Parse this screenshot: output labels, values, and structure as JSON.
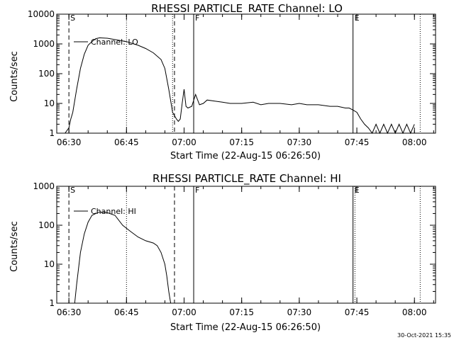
{
  "footer_date": "30-Oct-2021 15:35",
  "chart_data": [
    {
      "type": "line",
      "title": "RHESSI PARTICLE_RATE Channel: LO",
      "xlabel": "Start Time (22-Aug-15 06:26:50)",
      "ylabel": "Counts/sec",
      "yscale": "log",
      "ylim": [
        1,
        10000
      ],
      "xlim": [
        "06:26:50",
        "08:05:30"
      ],
      "x_ticks": [
        "06:30",
        "06:45",
        "07:00",
        "07:15",
        "07:30",
        "07:45",
        "08:00"
      ],
      "y_ticks": [
        "1",
        "10",
        "100",
        "1000",
        "10000"
      ],
      "legend": {
        "label": "Channel: LO",
        "placement": "top-left"
      },
      "event_markers": [
        {
          "label": "S",
          "time": "06:30:00",
          "style": "dashed"
        },
        {
          "label": "",
          "time": "06:57:30",
          "style": "dashed"
        },
        {
          "label": "F",
          "time": "07:02:30",
          "style": "solid"
        },
        {
          "label": "E",
          "time": "07:44:00",
          "style": "solid"
        }
      ],
      "dotted_lines": [
        "06:45:00",
        "06:57:00",
        "08:01:30"
      ],
      "series": [
        {
          "x": [
            "06:28:00",
            "06:29:00",
            "06:30:00",
            "06:30:30",
            "06:31:00",
            "06:32:00",
            "06:33:00",
            "06:34:00",
            "06:35:00",
            "06:36:00",
            "06:37:00",
            "06:38:00",
            "06:40:00",
            "06:42:00",
            "06:45:00",
            "06:48:00",
            "06:50:00",
            "06:52:00",
            "06:54:00",
            "06:55:00",
            "06:56:00",
            "06:57:00",
            "06:58:00",
            "06:58:30",
            "06:59:00",
            "06:59:30",
            "07:00:00",
            "07:00:30",
            "07:01:00",
            "07:02:00",
            "07:03:00",
            "07:04:00",
            "07:05:00",
            "07:06:00",
            "07:08:00",
            "07:10:00",
            "07:12:00",
            "07:15:00",
            "07:18:00",
            "07:20:00",
            "07:22:00",
            "07:25:00",
            "07:28:00",
            "07:30:00",
            "07:32:00",
            "07:35:00",
            "07:38:00",
            "07:40:00",
            "07:42:00",
            "07:43:00",
            "07:44:00",
            "07:45:00",
            "07:46:00",
            "07:47:00",
            "07:48:00",
            "07:49:00",
            "07:50:00",
            "07:51:00",
            "07:52:00",
            "07:53:00",
            "07:54:00",
            "07:55:00",
            "07:56:00",
            "07:57:00",
            "07:58:00",
            "07:59:00",
            "08:00:00"
          ],
          "y": [
            1,
            1,
            1.5,
            3,
            5,
            30,
            150,
            450,
            900,
            1200,
            1500,
            1600,
            1550,
            1400,
            1200,
            900,
            700,
            500,
            300,
            150,
            30,
            5,
            3,
            2.5,
            3,
            10,
            30,
            8,
            7,
            8,
            20,
            9,
            10,
            13,
            12,
            11,
            10,
            10,
            11,
            9,
            10,
            10,
            9,
            10,
            9,
            9,
            8,
            8,
            7,
            7,
            6,
            5,
            3,
            2,
            1.5,
            1,
            2,
            1,
            2,
            1,
            2,
            1,
            2,
            1,
            2,
            1,
            2
          ]
        }
      ]
    },
    {
      "type": "line",
      "title": "RHESSI PARTICLE_RATE Channel: HI",
      "xlabel": "Start Time (22-Aug-15 06:26:50)",
      "ylabel": "Counts/sec",
      "yscale": "log",
      "ylim": [
        1,
        1000
      ],
      "xlim": [
        "06:26:50",
        "08:05:30"
      ],
      "x_ticks": [
        "06:30",
        "06:45",
        "07:00",
        "07:15",
        "07:30",
        "07:45",
        "08:00"
      ],
      "y_ticks": [
        "1",
        "10",
        "100",
        "1000"
      ],
      "legend": {
        "label": "Channel: HI",
        "placement": "top-left"
      },
      "event_markers": [
        {
          "label": "S",
          "time": "06:30:00",
          "style": "dashed"
        },
        {
          "label": "",
          "time": "06:57:30",
          "style": "dashed"
        },
        {
          "label": "F",
          "time": "07:02:30",
          "style": "solid"
        },
        {
          "label": "E",
          "time": "07:44:00",
          "style": "solid"
        }
      ],
      "dotted_lines": [
        "06:45:00",
        "07:44:30",
        "08:01:30"
      ],
      "series": [
        {
          "x": [
            "06:31:30",
            "06:32:00",
            "06:33:00",
            "06:34:00",
            "06:35:00",
            "06:36:00",
            "06:37:00",
            "06:38:00",
            "06:40:00",
            "06:42:00",
            "06:44:00",
            "06:46:00",
            "06:48:00",
            "06:50:00",
            "06:52:00",
            "06:53:00",
            "06:54:00",
            "06:55:00",
            "06:55:30",
            "06:56:00",
            "06:56:30"
          ],
          "y": [
            1,
            3,
            20,
            60,
            120,
            180,
            200,
            220,
            210,
            180,
            100,
            70,
            50,
            40,
            35,
            30,
            20,
            10,
            5,
            2,
            1
          ]
        }
      ]
    }
  ]
}
